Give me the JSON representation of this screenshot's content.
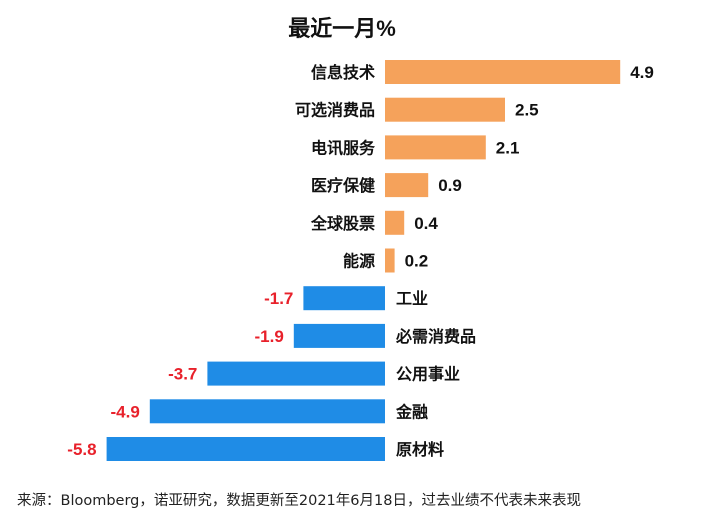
{
  "chart_data": {
    "type": "bar",
    "orientation": "horizontal",
    "title": "最近一月%",
    "categories": [
      "信息技术",
      "可选消费品",
      "电讯服务",
      "医疗保健",
      "全球股票",
      "能源",
      "工业",
      "必需消费品",
      "公用事业",
      "金融",
      "原材料"
    ],
    "values": [
      4.9,
      2.5,
      2.1,
      0.9,
      0.4,
      0.2,
      -1.7,
      -1.9,
      -3.7,
      -4.9,
      -5.8
    ],
    "value_labels": [
      "4.9",
      "2.5",
      "2.1",
      "0.9",
      "0.4",
      "0.2",
      "-1.7",
      "-1.9",
      "-3.7",
      "-4.9",
      "-5.8"
    ],
    "xlim": [
      -5.8,
      4.9
    ],
    "grid": false,
    "legend": "none",
    "colors": {
      "positive_bar": "#F5A25B",
      "negative_bar": "#1F8CE6",
      "positive_label": "#111111",
      "negative_label": "#E8212B"
    }
  },
  "footer": {
    "source": "来源：Bloomberg，诺亚研究，数据更新至2021年6月18日，过去业绩不代表未来表现"
  }
}
